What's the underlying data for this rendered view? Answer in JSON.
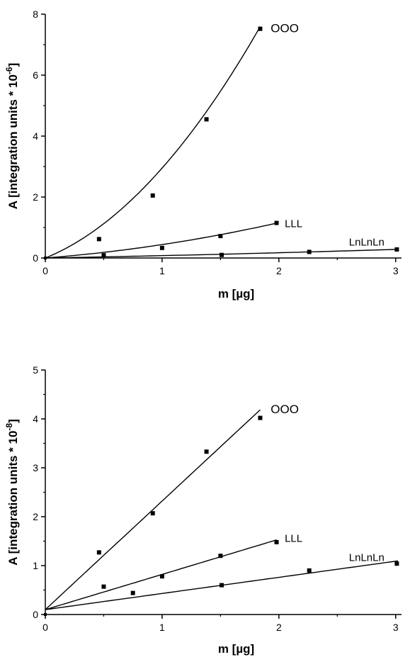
{
  "chart_data": [
    {
      "type": "scatter",
      "title": "",
      "xlabel": "m [µg]",
      "ylabel_main": "A [integration units * 10",
      "ylabel_exp": "-6",
      "ylabel_close": "]",
      "xlim": [
        0,
        3.05
      ],
      "ylim": [
        0,
        8
      ],
      "xticks": [
        "0",
        "1",
        "2",
        "3"
      ],
      "yticks": [
        "0",
        "2",
        "4",
        "6",
        "8"
      ],
      "series": [
        {
          "name": "OOO",
          "x": [
            0.46,
            0.92,
            1.38,
            1.84
          ],
          "y": [
            0.62,
            2.05,
            4.55,
            7.52
          ],
          "fit": "quadratic",
          "fit_coef": [
            0,
            1.55,
            1.4
          ],
          "fit_range": [
            0,
            1.84
          ],
          "label_at": [
            1.93,
            7.55
          ]
        },
        {
          "name": "LLL",
          "x": [
            0.5,
            1.0,
            1.5,
            1.98
          ],
          "y": [
            0.09,
            0.33,
            0.72,
            1.15
          ],
          "fit": "quadratic",
          "fit_coef": [
            0,
            0.3,
            0.14
          ],
          "fit_range": [
            0,
            1.98
          ],
          "label_at": [
            2.05,
            1.15
          ]
        },
        {
          "name": "LnLnLn",
          "x": [
            1.51,
            2.26,
            3.01
          ],
          "y": [
            0.1,
            0.2,
            0.28
          ],
          "fit": "quadratic",
          "fit_coef": [
            0,
            0.07,
            0.008
          ],
          "fit_range": [
            0,
            3.02
          ],
          "label_at": [
            2.6,
            0.55
          ]
        }
      ]
    },
    {
      "type": "scatter",
      "title": "",
      "xlabel": "m [µg]",
      "ylabel_main": "A [integration units * 10",
      "ylabel_exp": "-8",
      "ylabel_close": "]",
      "xlim": [
        0,
        3.05
      ],
      "ylim": [
        0,
        5
      ],
      "xticks": [
        "0",
        "1",
        "2",
        "3"
      ],
      "yticks": [
        "0",
        "1",
        "2",
        "3",
        "4",
        "5"
      ],
      "series": [
        {
          "name": "OOO",
          "x": [
            0.46,
            0.92,
            1.38,
            1.84
          ],
          "y": [
            1.27,
            2.07,
            3.33,
            4.02
          ],
          "fit": "linear",
          "fit_coef": [
            0.1,
            2.22
          ],
          "fit_range": [
            0,
            1.84
          ],
          "label_at": [
            1.93,
            4.2
          ]
        },
        {
          "name": "LLL",
          "x": [
            0.5,
            0.75,
            1.0,
            1.5,
            1.98
          ],
          "y": [
            0.57,
            0.44,
            0.78,
            1.2,
            1.48
          ],
          "fit": "linear",
          "fit_coef": [
            0.1,
            0.72
          ],
          "fit_range": [
            0,
            1.98
          ],
          "label_at": [
            2.05,
            1.57
          ]
        },
        {
          "name": "LnLnLn",
          "x": [
            1.51,
            2.26,
            3.01
          ],
          "y": [
            0.6,
            0.9,
            1.04
          ],
          "fit": "linear",
          "fit_coef": [
            0.1,
            0.33
          ],
          "fit_range": [
            0,
            3.02
          ],
          "label_at": [
            2.6,
            1.18
          ]
        }
      ]
    }
  ]
}
